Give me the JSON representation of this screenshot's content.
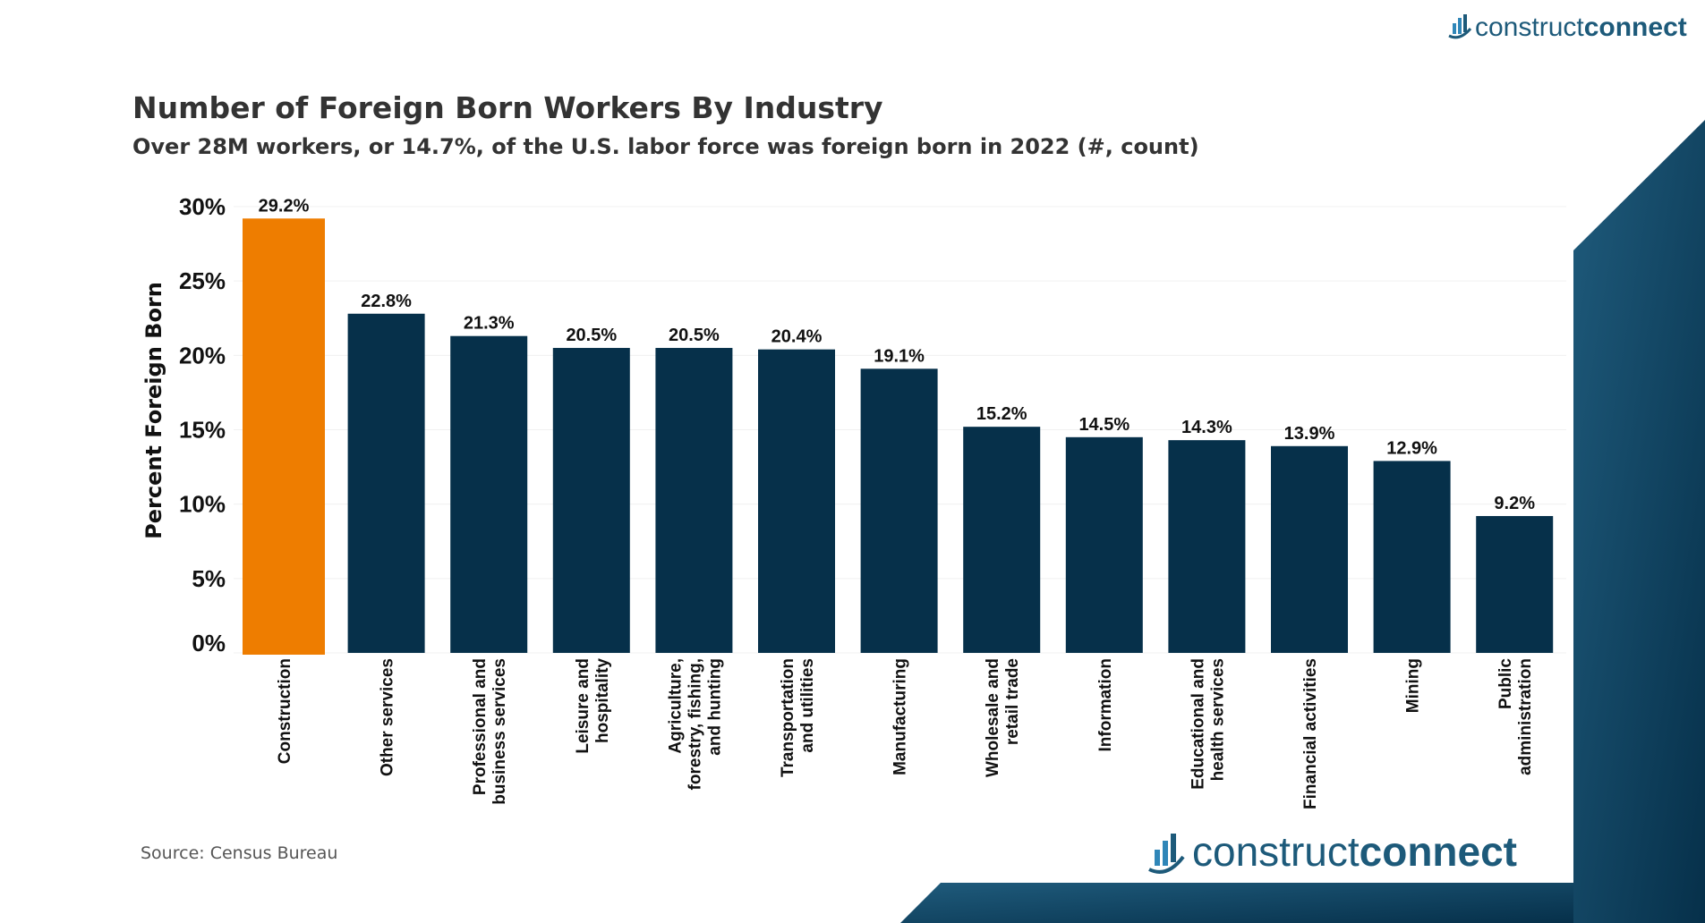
{
  "header": {
    "title": "Number of Foreign Born Workers By Industry",
    "subtitle": "Over 28M workers, or 14.7%, of the U.S. labor force was foreign born in 2022 (#, count)"
  },
  "source": "Source: Census Bureau",
  "logo": {
    "light": "construct",
    "bold": "connect"
  },
  "colors": {
    "highlight": "#ee7d00",
    "bar": "#06304a",
    "background_shape": "#1b5577",
    "text": "#333333"
  },
  "chart_data": {
    "type": "bar",
    "title": "Number of Foreign Born Workers By Industry",
    "subtitle": "Over 28M workers, or 14.7%, of the U.S. labor force was foreign born in 2022 (#, count)",
    "xlabel": "",
    "ylabel": "Percent Foreign Born",
    "ylim": [
      0,
      30
    ],
    "yticks": [
      0,
      5,
      10,
      15,
      20,
      25,
      30
    ],
    "ytick_labels": [
      "0%",
      "5%",
      "10%",
      "15%",
      "20%",
      "25%",
      "30%"
    ],
    "grid": true,
    "categories": [
      [
        "Construction"
      ],
      [
        "Other services"
      ],
      [
        "Professional and",
        "business services"
      ],
      [
        "Leisure and",
        "hospitality"
      ],
      [
        "Agriculture,",
        "forestry, fishing,",
        "and hunting"
      ],
      [
        "Transportation",
        "and utilities"
      ],
      [
        "Manufacturing"
      ],
      [
        "Wholesale and",
        "retail trade"
      ],
      [
        "Information"
      ],
      [
        "Educational and",
        "health services"
      ],
      [
        "Financial activities"
      ],
      [
        "Mining"
      ],
      [
        "Public",
        "administration"
      ]
    ],
    "values": [
      29.2,
      22.8,
      21.3,
      20.5,
      20.5,
      20.4,
      19.1,
      15.2,
      14.5,
      14.3,
      13.9,
      12.9,
      9.2
    ],
    "data_labels": [
      "29.2%",
      "22.8%",
      "21.3%",
      "20.5%",
      "20.5%",
      "20.4%",
      "19.1%",
      "15.2%",
      "14.5%",
      "14.3%",
      "13.9%",
      "12.9%",
      "9.2%"
    ],
    "highlight_index": 0
  }
}
